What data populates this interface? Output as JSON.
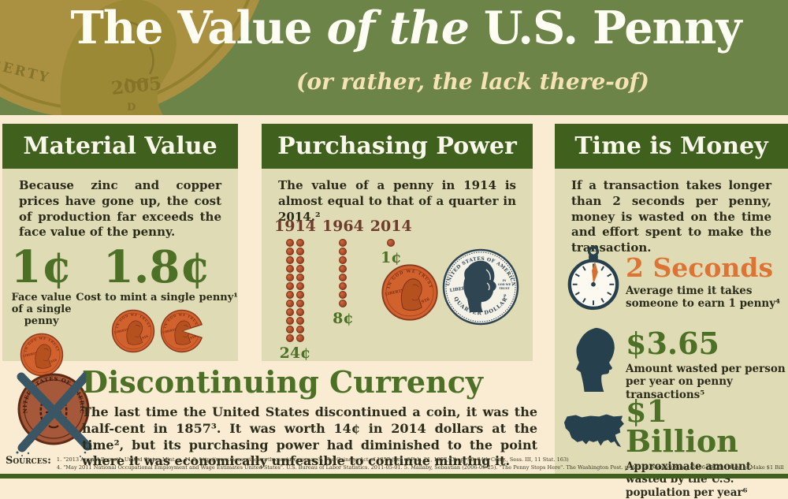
{
  "banner": {
    "title_pre": "The Value ",
    "title_italic": "of the",
    "title_post": " U.S. Penny",
    "subtitle": "(or rather, the lack there-of)",
    "watermark": {
      "liberty": "BERTY",
      "year": "2005",
      "mint": "D"
    }
  },
  "panels": {
    "material": {
      "heading": "Material Value",
      "body": "Because zinc and copper prices have gone up, the cost of production far exceeds the face value of the penny.",
      "stats": [
        {
          "value": "1¢",
          "caption": "Face value of a single penny"
        },
        {
          "value": "1.8¢",
          "caption": "Cost to mint a single penny¹"
        }
      ]
    },
    "purchasing": {
      "heading": "Purchasing Power",
      "body": "The value of a penny in 1914 is almost equal to that of a quarter in 2014.²",
      "chart": {
        "type": "pictogram",
        "unit": "penny",
        "columns": [
          {
            "year": "1914",
            "count": 24,
            "label": "24¢"
          },
          {
            "year": "1964",
            "count": 8,
            "label": "8¢"
          },
          {
            "year": "2014",
            "count": 1,
            "label": "1¢"
          }
        ]
      },
      "penny_coin": {
        "top_text": "IN GOD WE TRUST",
        "left_text": "LIBERTY",
        "date": "1916"
      },
      "quarter_coin": {
        "top_text": "UNITED STATES OF AMERICA",
        "left_text": "LIBERTY",
        "right_text": "IN GOD WE TRUST",
        "bottom_text": "QUARTER DOLLAR",
        "mint": "P"
      }
    },
    "time": {
      "heading": "Time is Money",
      "body": "If a transaction takes longer than 2 seconds per penny, money is wasted on the time and effort spent to make the transaction.",
      "stats": [
        {
          "icon": "stopwatch-icon",
          "value": "2 Seconds",
          "caption": "Average time it takes someone to earn 1 penny⁴"
        },
        {
          "icon": "head-silhouette-icon",
          "value": "$3.65",
          "caption": "Amount wasted per person per year on penny transactions⁵"
        },
        {
          "icon": "usa-map-icon",
          "value": "$1 Billion",
          "caption": "Approximate amount wasted by the U.S. population per year⁶"
        }
      ]
    }
  },
  "discontinuing": {
    "heading": "Discontinuing Currency",
    "coin_legend": "UNITED STATES OF AMERICA",
    "body": "The last time the United States discontinued a coin, it was the half-cent in 1857³. It was worth 14¢ in 2014 dollars at the time², but its purchasing power had diminished to the point where it was economically unfeasible to continue minting it."
  },
  "sources": {
    "label": "Sources:",
    "line1": "1. \"2013 Annual Report\". United States Mint. p. 11   2. http://www.measuringworth.com/uscompare   3. The Coinage Act of 1857 (Act of Feb. 21, 1857, Chap. 56, 34th Cong., Sess. III, 11 Stat. 163)",
    "line2": "4. \"May 2011 National Occupational Employment and Wage Estimates United States\". U.S. Bureau of Labor Statistics. 2011-05-01.   5. Mallaby, Sebastian (2006-09-25). \"The Penny Stops Here\". The Washington Post. p. A21.   6. Mankiw, Greg (2006-09-25). \"How to Make $1 Billion\". Greg Mankiw's Blog"
  },
  "colors": {
    "banner_green": "#6d8449",
    "header_green": "#40601e",
    "panel_khaki": "#dfdbb5",
    "cream": "#f9ecd2",
    "accent_green": "#4c7026",
    "accent_orange": "#dd7434",
    "penny_copper": "#d2622d",
    "year_maroon": "#6f3b2b",
    "ink": "#2b2b1a",
    "silhouette_teal": "#27404d"
  }
}
